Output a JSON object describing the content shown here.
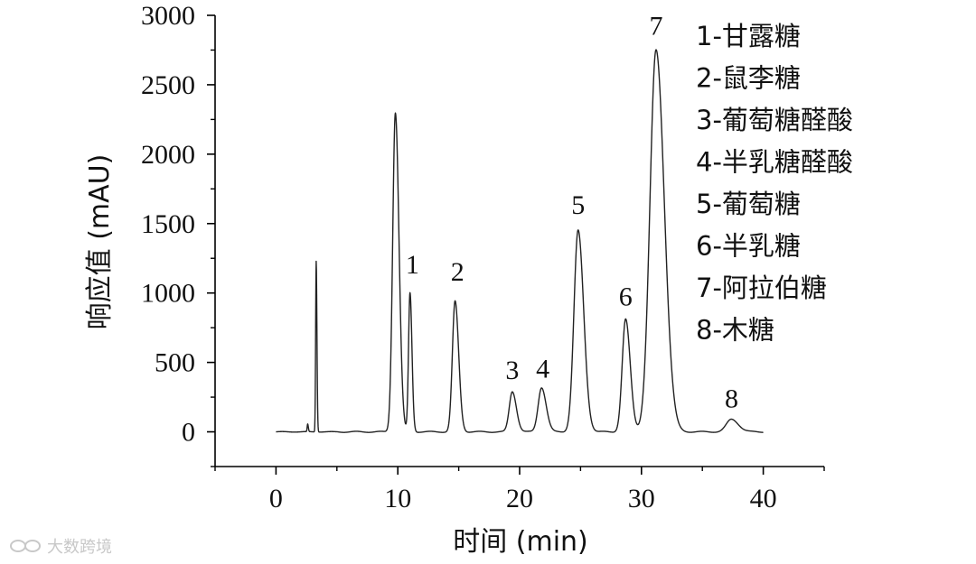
{
  "chart_data": {
    "type": "line",
    "xlabel": "时间 (min)",
    "ylabel": "响应值 (mAU)",
    "xlim": [
      -5,
      45
    ],
    "ylim": [
      -250,
      3000
    ],
    "x_ticks": [
      0,
      10,
      20,
      30,
      40
    ],
    "y_ticks": [
      0,
      500,
      1000,
      1500,
      2000,
      2500,
      3000
    ],
    "series": [
      {
        "peaks": [
          {
            "x": 2.6,
            "height": 55,
            "sigma": 0.04
          },
          {
            "x": 3.3,
            "height": 1230,
            "sigma": 0.045
          },
          {
            "x": 9.8,
            "height": 2300,
            "sigma": 0.22
          },
          {
            "x": 11.0,
            "height": 1000,
            "sigma": 0.12
          },
          {
            "x": 14.7,
            "height": 940,
            "sigma": 0.22
          },
          {
            "x": 19.4,
            "height": 290,
            "sigma": 0.25
          },
          {
            "x": 21.8,
            "height": 320,
            "sigma": 0.28
          },
          {
            "x": 24.8,
            "height": 1450,
            "sigma": 0.34
          },
          {
            "x": 28.7,
            "height": 810,
            "sigma": 0.28
          },
          {
            "x": 31.2,
            "height": 2750,
            "sigma": 0.5
          },
          {
            "x": 37.4,
            "height": 90,
            "sigma": 0.42
          }
        ],
        "x_range": [
          0,
          40
        ]
      }
    ],
    "peak_labels": [
      {
        "text": "1",
        "x": 11.2,
        "y": 1140
      },
      {
        "text": "2",
        "x": 14.9,
        "y": 1090
      },
      {
        "text": "3",
        "x": 19.4,
        "y": 380
      },
      {
        "text": "4",
        "x": 21.9,
        "y": 390
      },
      {
        "text": "5",
        "x": 24.8,
        "y": 1570
      },
      {
        "text": "6",
        "x": 28.7,
        "y": 910
      },
      {
        "text": "7",
        "x": 31.2,
        "y": 2860
      },
      {
        "text": "8",
        "x": 37.4,
        "y": 175
      }
    ],
    "legend": {
      "placement": "top-right",
      "entries": [
        "1-甘露糖",
        "2-鼠李糖",
        "3-葡萄糖醛酸",
        "4-半乳糖醛酸",
        "5-葡萄糖",
        "6-半乳糖",
        "7-阿拉伯糖",
        "8-木糖"
      ]
    },
    "grid": false
  },
  "watermark": {
    "text": "大数跨境",
    "logo": "infinity-logo"
  },
  "colors": {
    "line": "#222222",
    "axis": "#000000",
    "watermark": "#c8c8c8"
  }
}
